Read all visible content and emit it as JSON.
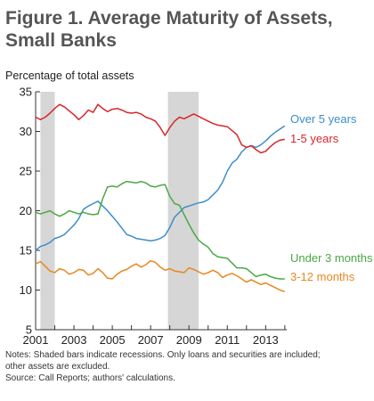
{
  "figure": {
    "title_line1": "Figure 1. Average Maturity of Assets,",
    "title_line2": "Small Banks"
  },
  "notes": {
    "line1": "Notes: Shaded bars indicate recessions. Only loans and securities are included;",
    "line2": "other assets are excluded.",
    "line3": "Source: Call Reports; authors' calculations."
  },
  "colors": {
    "over5": "#3d8ec9",
    "one_to_five": "#d9252a",
    "under3": "#4aa845",
    "three_to_twelve": "#e8871e",
    "recession": "#d6d6d6",
    "axis": "#333333"
  },
  "chart_data": {
    "type": "line",
    "title": "Figure 1. Average Maturity of Assets, Small Banks",
    "ylabel": "Percentage of total assets",
    "xlabel": "",
    "xlim": [
      2001,
      2014.1
    ],
    "ylim": [
      5,
      35
    ],
    "x_ticks": [
      2001,
      2003,
      2005,
      2007,
      2009,
      2011,
      2013
    ],
    "y_ticks": [
      5,
      10,
      15,
      20,
      25,
      30,
      35
    ],
    "grid": false,
    "legend": "direct labels at line ends",
    "recessions": [
      [
        2001.25,
        2002.0
      ],
      [
        2007.9,
        2009.5
      ]
    ],
    "series": [
      {
        "name": "Over 5 years",
        "color_key": "over5",
        "points": [
          [
            2001,
            15
          ],
          [
            2001.25,
            15.5
          ],
          [
            2001.5,
            15.7
          ],
          [
            2001.75,
            16
          ],
          [
            2002,
            16.5
          ],
          [
            2002.25,
            16.7
          ],
          [
            2002.5,
            17
          ],
          [
            2002.75,
            17.6
          ],
          [
            2003,
            18.2
          ],
          [
            2003.25,
            19
          ],
          [
            2003.5,
            20.2
          ],
          [
            2003.75,
            20.6
          ],
          [
            2004,
            20.9
          ],
          [
            2004.25,
            21.2
          ],
          [
            2004.5,
            20.6
          ],
          [
            2004.75,
            20
          ],
          [
            2005,
            19.3
          ],
          [
            2005.25,
            18.6
          ],
          [
            2005.5,
            17.8
          ],
          [
            2005.75,
            17
          ],
          [
            2006,
            16.8
          ],
          [
            2006.25,
            16.5
          ],
          [
            2006.5,
            16.4
          ],
          [
            2006.75,
            16.3
          ],
          [
            2007,
            16.2
          ],
          [
            2007.25,
            16.3
          ],
          [
            2007.5,
            16.5
          ],
          [
            2007.75,
            16.9
          ],
          [
            2008,
            17.9
          ],
          [
            2008.25,
            19.2
          ],
          [
            2008.5,
            19.8
          ],
          [
            2008.75,
            20.4
          ],
          [
            2009,
            20.6
          ],
          [
            2009.25,
            20.8
          ],
          [
            2009.5,
            21
          ],
          [
            2009.75,
            21.1
          ],
          [
            2010,
            21.4
          ],
          [
            2010.25,
            22
          ],
          [
            2010.5,
            22.6
          ],
          [
            2010.75,
            23.6
          ],
          [
            2011,
            25
          ],
          [
            2011.25,
            26
          ],
          [
            2011.5,
            26.5
          ],
          [
            2011.75,
            27.4
          ],
          [
            2012,
            28
          ],
          [
            2012.25,
            28.2
          ],
          [
            2012.5,
            28
          ],
          [
            2012.75,
            28.3
          ],
          [
            2013,
            28.8
          ],
          [
            2013.25,
            29.4
          ],
          [
            2013.5,
            29.9
          ],
          [
            2013.75,
            30.3
          ],
          [
            2014,
            30.7
          ]
        ]
      },
      {
        "name": "1-5 years",
        "color_key": "one_to_five",
        "points": [
          [
            2001,
            31.8
          ],
          [
            2001.25,
            31.5
          ],
          [
            2001.5,
            31.8
          ],
          [
            2001.75,
            32.3
          ],
          [
            2002,
            32.9
          ],
          [
            2002.25,
            33.4
          ],
          [
            2002.5,
            33.1
          ],
          [
            2002.75,
            32.6
          ],
          [
            2003,
            32.1
          ],
          [
            2003.25,
            31.5
          ],
          [
            2003.5,
            32
          ],
          [
            2003.75,
            32.7
          ],
          [
            2004,
            32.4
          ],
          [
            2004.25,
            33.4
          ],
          [
            2004.5,
            32.9
          ],
          [
            2004.75,
            32.5
          ],
          [
            2005,
            32.8
          ],
          [
            2005.25,
            32.9
          ],
          [
            2005.5,
            32.7
          ],
          [
            2005.75,
            32.4
          ],
          [
            2006,
            32.3
          ],
          [
            2006.25,
            32.4
          ],
          [
            2006.5,
            32.2
          ],
          [
            2006.75,
            31.8
          ],
          [
            2007,
            31.6
          ],
          [
            2007.25,
            31.3
          ],
          [
            2007.5,
            30.5
          ],
          [
            2007.75,
            29.5
          ],
          [
            2008,
            30.5
          ],
          [
            2008.25,
            31.3
          ],
          [
            2008.5,
            31.8
          ],
          [
            2008.75,
            31.6
          ],
          [
            2009,
            31.9
          ],
          [
            2009.25,
            32.2
          ],
          [
            2009.5,
            31.9
          ],
          [
            2009.75,
            31.6
          ],
          [
            2010,
            31.3
          ],
          [
            2010.25,
            31
          ],
          [
            2010.5,
            30.8
          ],
          [
            2010.75,
            30.7
          ],
          [
            2011,
            30.6
          ],
          [
            2011.25,
            30.1
          ],
          [
            2011.5,
            29.6
          ],
          [
            2011.75,
            28.3
          ],
          [
            2012,
            28
          ],
          [
            2012.25,
            28.2
          ],
          [
            2012.5,
            27.7
          ],
          [
            2012.75,
            27.3
          ],
          [
            2013,
            27.5
          ],
          [
            2013.25,
            28.1
          ],
          [
            2013.5,
            28.6
          ],
          [
            2013.75,
            28.9
          ],
          [
            2014,
            29
          ]
        ]
      },
      {
        "name": "Under 3 months",
        "color_key": "under3",
        "points": [
          [
            2001,
            19.8
          ],
          [
            2001.25,
            19.6
          ],
          [
            2001.5,
            19.8
          ],
          [
            2001.75,
            20
          ],
          [
            2002,
            19.6
          ],
          [
            2002.25,
            19.3
          ],
          [
            2002.5,
            19.6
          ],
          [
            2002.75,
            20
          ],
          [
            2003,
            19.8
          ],
          [
            2003.25,
            19.6
          ],
          [
            2003.5,
            19.8
          ],
          [
            2003.75,
            19.6
          ],
          [
            2004,
            19.5
          ],
          [
            2004.25,
            19.6
          ],
          [
            2004.5,
            21.5
          ],
          [
            2004.75,
            23
          ],
          [
            2005,
            23.1
          ],
          [
            2005.25,
            23
          ],
          [
            2005.5,
            23.4
          ],
          [
            2005.75,
            23.7
          ],
          [
            2006,
            23.6
          ],
          [
            2006.25,
            23.5
          ],
          [
            2006.5,
            23.7
          ],
          [
            2006.75,
            23.5
          ],
          [
            2007,
            23.1
          ],
          [
            2007.25,
            23
          ],
          [
            2007.5,
            23.2
          ],
          [
            2007.75,
            23.3
          ],
          [
            2008,
            21.8
          ],
          [
            2008.25,
            20.9
          ],
          [
            2008.5,
            20.7
          ],
          [
            2008.75,
            19.5
          ],
          [
            2009,
            18.3
          ],
          [
            2009.25,
            17.2
          ],
          [
            2009.5,
            16.3
          ],
          [
            2009.75,
            15.8
          ],
          [
            2010,
            15.4
          ],
          [
            2010.25,
            14.6
          ],
          [
            2010.5,
            14.2
          ],
          [
            2010.75,
            14.1
          ],
          [
            2011,
            14
          ],
          [
            2011.25,
            13.4
          ],
          [
            2011.5,
            12.8
          ],
          [
            2011.75,
            12.8
          ],
          [
            2012,
            12.7
          ],
          [
            2012.25,
            12.2
          ],
          [
            2012.5,
            11.7
          ],
          [
            2012.75,
            11.9
          ],
          [
            2013,
            12
          ],
          [
            2013.25,
            11.7
          ],
          [
            2013.5,
            11.5
          ],
          [
            2013.75,
            11.4
          ],
          [
            2014,
            11.4
          ]
        ]
      },
      {
        "name": "3-12 months",
        "color_key": "three_to_twelve",
        "points": [
          [
            2001,
            13.3
          ],
          [
            2001.25,
            13.6
          ],
          [
            2001.5,
            13
          ],
          [
            2001.75,
            12.4
          ],
          [
            2002,
            12.2
          ],
          [
            2002.25,
            12.7
          ],
          [
            2002.5,
            12.5
          ],
          [
            2002.75,
            12
          ],
          [
            2003,
            12.2
          ],
          [
            2003.25,
            12.6
          ],
          [
            2003.5,
            12.5
          ],
          [
            2003.75,
            11.9
          ],
          [
            2004,
            12.1
          ],
          [
            2004.25,
            12.7
          ],
          [
            2004.5,
            12.2
          ],
          [
            2004.75,
            11.5
          ],
          [
            2005,
            11.4
          ],
          [
            2005.25,
            12
          ],
          [
            2005.5,
            12.4
          ],
          [
            2005.75,
            12.6
          ],
          [
            2006,
            13
          ],
          [
            2006.25,
            13.3
          ],
          [
            2006.5,
            12.9
          ],
          [
            2006.75,
            13.2
          ],
          [
            2007,
            13.7
          ],
          [
            2007.25,
            13.5
          ],
          [
            2007.5,
            12.9
          ],
          [
            2007.75,
            12.5
          ],
          [
            2008,
            12.7
          ],
          [
            2008.25,
            12.4
          ],
          [
            2008.5,
            12.3
          ],
          [
            2008.75,
            12.2
          ],
          [
            2009,
            12.8
          ],
          [
            2009.25,
            12.6
          ],
          [
            2009.5,
            12.3
          ],
          [
            2009.75,
            12
          ],
          [
            2010,
            12.2
          ],
          [
            2010.25,
            12.5
          ],
          [
            2010.5,
            12.2
          ],
          [
            2010.75,
            11.6
          ],
          [
            2011,
            11.9
          ],
          [
            2011.25,
            12.1
          ],
          [
            2011.5,
            11.8
          ],
          [
            2011.75,
            11.4
          ],
          [
            2012,
            11
          ],
          [
            2012.25,
            11.3
          ],
          [
            2012.5,
            11
          ],
          [
            2012.75,
            10.7
          ],
          [
            2013,
            10.9
          ],
          [
            2013.25,
            10.6
          ],
          [
            2013.5,
            10.3
          ],
          [
            2013.75,
            10
          ],
          [
            2014,
            9.8
          ]
        ]
      }
    ]
  }
}
